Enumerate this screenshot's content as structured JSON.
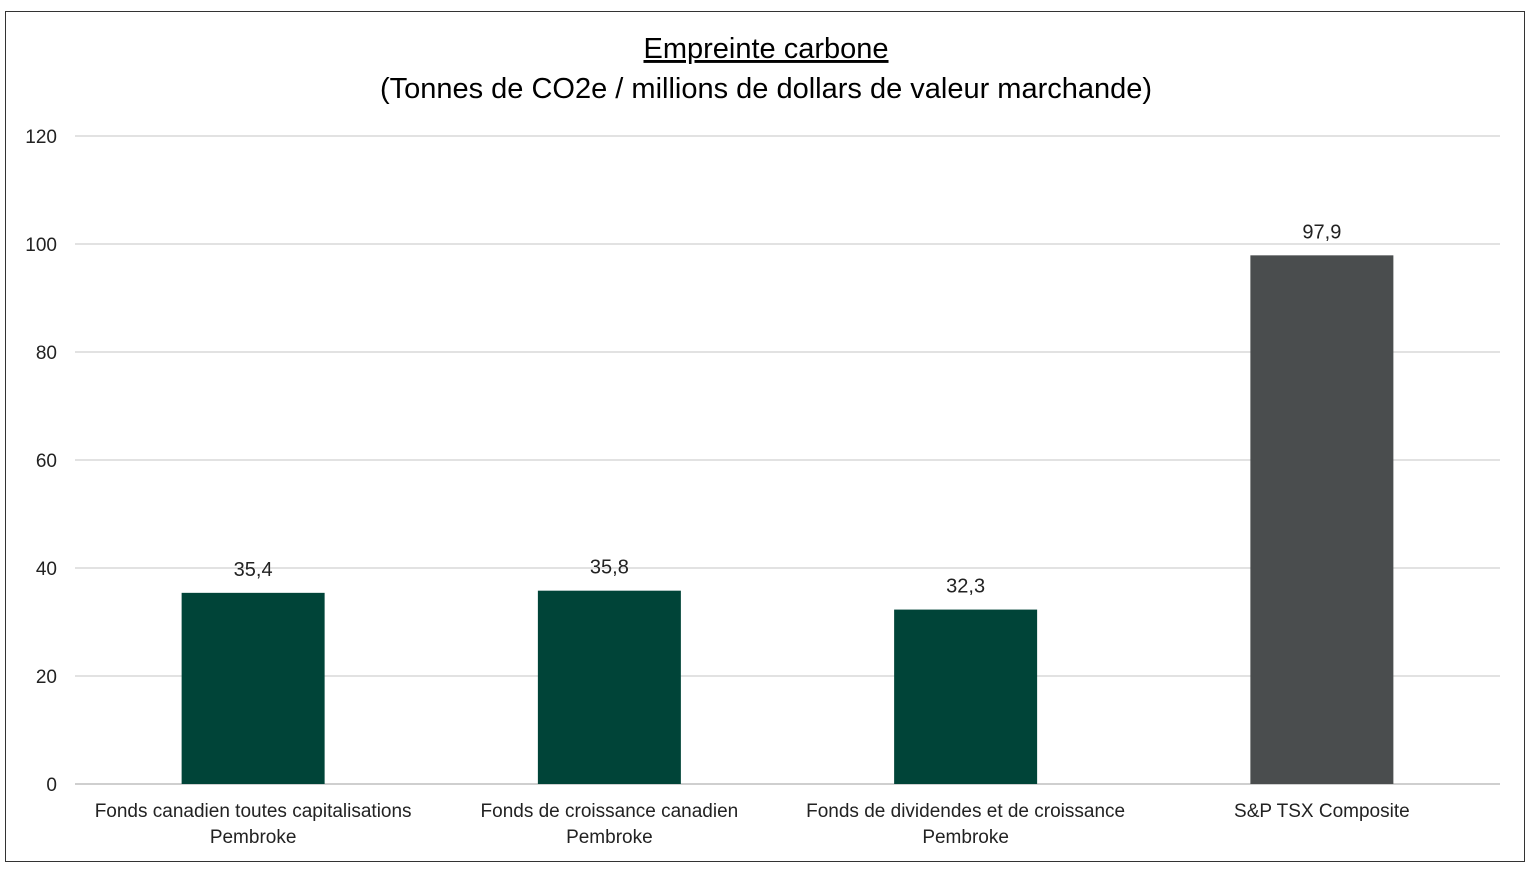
{
  "chart_data": {
    "type": "bar",
    "title": "Empreinte carbone",
    "subtitle": "(Tonnes de CO2e / millions de dollars de valeur marchande)",
    "categories": [
      [
        "Fonds canadien toutes capitalisations",
        "Pembroke"
      ],
      [
        "Fonds de croissance canadien",
        "Pembroke"
      ],
      [
        "Fonds de dividendes et de croissance",
        "Pembroke"
      ],
      [
        "S&P TSX Composite"
      ]
    ],
    "values": [
      35.4,
      35.8,
      32.3,
      97.9
    ],
    "value_labels": [
      "35,4",
      "35,8",
      "32,3",
      "97,9"
    ],
    "colors": [
      "#004438",
      "#004438",
      "#004438",
      "#4a4d4e"
    ],
    "yticks": [
      0,
      20,
      40,
      60,
      80,
      100,
      120
    ],
    "ylim": [
      0,
      120
    ],
    "grid": true,
    "legend": "none"
  }
}
